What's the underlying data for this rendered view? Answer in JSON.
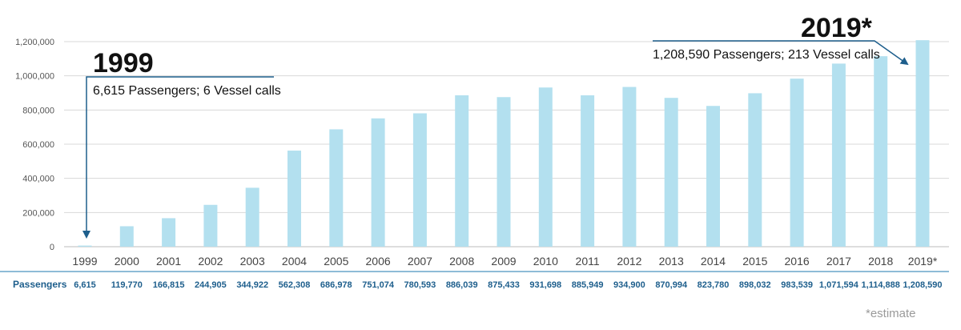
{
  "chart_data": {
    "type": "bar",
    "categories": [
      "1999",
      "2000",
      "2001",
      "2002",
      "2003",
      "2004",
      "2005",
      "2006",
      "2007",
      "2008",
      "2009",
      "2010",
      "2011",
      "2012",
      "2013",
      "2014",
      "2015",
      "2016",
      "2017",
      "2018",
      "2019*"
    ],
    "values": [
      6615,
      119770,
      166815,
      244905,
      344922,
      562308,
      686978,
      751074,
      780593,
      886039,
      875433,
      931698,
      885949,
      934900,
      870994,
      823780,
      898032,
      983539,
      1071594,
      1114888,
      1208590
    ],
    "value_labels": [
      "6,615",
      "119,770",
      "166,815",
      "244,905",
      "344,922",
      "562,308",
      "686,978",
      "751,074",
      "780,593",
      "886,039",
      "875,433",
      "931,698",
      "885,949",
      "934,900",
      "870,994",
      "823,780",
      "898,032",
      "983,539",
      "1,071,594",
      "1,114,888",
      "1,208,590"
    ],
    "yticks": [
      "0",
      "200,000",
      "400,000",
      "600,000",
      "800,000",
      "1,000,000",
      "1,200,000"
    ],
    "ytick_values": [
      0,
      200000,
      400000,
      600000,
      800000,
      1000000,
      1200000
    ],
    "ylim": [
      0,
      1200000
    ],
    "grid": true,
    "table_row_label": "Passengers",
    "bar_color": "#b3e0ef",
    "label_color": "#1d5e8c",
    "arrow_color": "#1d5e8c",
    "annotations": [
      {
        "year": "1999",
        "text": "6,615 Passengers; 6 Vessel calls"
      },
      {
        "year": "2019*",
        "text": "1,208,590 Passengers;  213 Vessel calls"
      }
    ],
    "footnote": "*estimate"
  }
}
